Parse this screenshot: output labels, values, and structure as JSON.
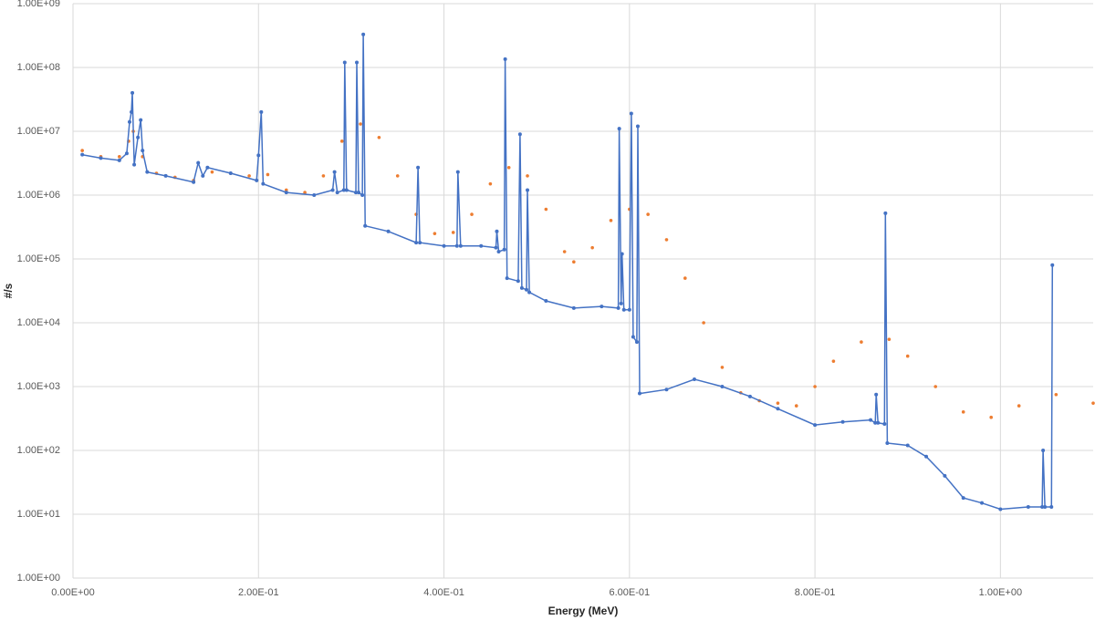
{
  "chart_data": {
    "type": "line",
    "log_y": true,
    "grid": true,
    "x_label": "Energy (MeV)",
    "y_label": "#/s",
    "xlim": [
      0,
      1.1
    ],
    "xticks": [
      {
        "value": 0,
        "label": "0.00E+00"
      },
      {
        "value": 0.2,
        "label": "2.00E-01"
      },
      {
        "value": 0.4,
        "label": "4.00E-01"
      },
      {
        "value": 0.6,
        "label": "6.00E-01"
      },
      {
        "value": 0.8,
        "label": "8.00E-01"
      },
      {
        "value": 1.0,
        "label": "1.00E+00"
      }
    ],
    "ylim": [
      1,
      1000000000
    ],
    "yticks": [
      {
        "value": 1,
        "label": "1.00E+00"
      },
      {
        "value": 10,
        "label": "1.00E+01"
      },
      {
        "value": 100,
        "label": "1.00E+02"
      },
      {
        "value": 1000,
        "label": "1.00E+03"
      },
      {
        "value": 10000,
        "label": "1.00E+04"
      },
      {
        "value": 100000,
        "label": "1.00E+05"
      },
      {
        "value": 1000000,
        "label": "1.00E+06"
      },
      {
        "value": 10000000,
        "label": "1.00E+07"
      },
      {
        "value": 100000000,
        "label": "1.00E+08"
      },
      {
        "value": 1000000000,
        "label": "1.00E+09"
      }
    ],
    "series": [
      {
        "color": "#ed7d31",
        "line": false,
        "x": [
          0.01,
          0.03,
          0.05,
          0.06,
          0.065,
          0.075,
          0.09,
          0.11,
          0.13,
          0.15,
          0.17,
          0.19,
          0.21,
          0.23,
          0.25,
          0.27,
          0.29,
          0.31,
          0.33,
          0.35,
          0.37,
          0.39,
          0.41,
          0.43,
          0.45,
          0.47,
          0.49,
          0.51,
          0.53,
          0.54,
          0.56,
          0.58,
          0.6,
          0.62,
          0.64,
          0.66,
          0.68,
          0.7,
          0.72,
          0.74,
          0.76,
          0.78,
          0.8,
          0.82,
          0.85,
          0.88,
          0.9,
          0.93,
          0.96,
          0.99,
          1.02,
          1.06,
          1.1
        ],
        "values": [
          5000000,
          4000000,
          4000000,
          7000000,
          10000000,
          4000000,
          2200000,
          1900000,
          1700000,
          2300000,
          2200000,
          2000000,
          2100000,
          1200000,
          1100000,
          2000000,
          7000000,
          13000000,
          8000000,
          2000000,
          500000,
          250000,
          260000,
          500000,
          1500000,
          2700000,
          2000000,
          600000,
          130000,
          90000,
          150000,
          400000,
          600000,
          500000,
          200000,
          50000,
          10000,
          2000,
          800,
          600,
          550,
          500,
          1000,
          2500,
          5000,
          5500,
          3000,
          1000,
          400,
          330,
          500,
          750,
          550
        ]
      },
      {
        "color": "#4472c4",
        "line": true,
        "x": [
          0.01,
          0.03,
          0.05,
          0.058,
          0.061,
          0.063,
          0.064,
          0.066,
          0.07,
          0.073,
          0.075,
          0.08,
          0.1,
          0.13,
          0.135,
          0.14,
          0.145,
          0.17,
          0.198,
          0.2,
          0.203,
          0.205,
          0.23,
          0.26,
          0.28,
          0.282,
          0.285,
          0.292,
          0.293,
          0.295,
          0.305,
          0.306,
          0.308,
          0.312,
          0.313,
          0.315,
          0.34,
          0.37,
          0.372,
          0.374,
          0.4,
          0.414,
          0.415,
          0.418,
          0.44,
          0.456,
          0.457,
          0.459,
          0.465,
          0.466,
          0.468,
          0.48,
          0.482,
          0.484,
          0.489,
          0.49,
          0.492,
          0.51,
          0.54,
          0.57,
          0.588,
          0.589,
          0.591,
          0.592,
          0.594,
          0.6,
          0.602,
          0.604,
          0.608,
          0.609,
          0.611,
          0.64,
          0.67,
          0.7,
          0.73,
          0.76,
          0.8,
          0.83,
          0.86,
          0.865,
          0.866,
          0.868,
          0.875,
          0.876,
          0.878,
          0.9,
          0.92,
          0.94,
          0.96,
          0.98,
          1.0,
          1.03,
          1.045,
          1.046,
          1.048,
          1.055,
          1.056
        ],
        "values": [
          4300000,
          3800000,
          3500000,
          4500000,
          14000000,
          20000000,
          40000000,
          3000000,
          8000000,
          15000000,
          5000000,
          2300000,
          2000000,
          1600000,
          3200000,
          2000000,
          2700000,
          2200000,
          1700000,
          4200000,
          20000000,
          1500000,
          1100000,
          1000000,
          1200000,
          2300000,
          1100000,
          1200000,
          120000000,
          1200000,
          1100000,
          120000000,
          1100000,
          1000000,
          330000000,
          330000,
          270000,
          180000,
          2700000,
          180000,
          160000,
          160000,
          2300000,
          160000,
          160000,
          150000,
          270000,
          130000,
          140000,
          135000000,
          50000,
          45000,
          9000000,
          35000,
          33000,
          1200000,
          30000,
          22000,
          17000,
          18000,
          17000,
          11000000,
          20000,
          120000,
          16000,
          16000,
          19000000,
          6000,
          5000,
          12000000,
          780,
          900,
          1300,
          1000,
          700,
          450,
          250,
          280,
          300,
          270,
          750,
          270,
          260,
          520000,
          130,
          120,
          80,
          40,
          18,
          15,
          12,
          13,
          13,
          100,
          13,
          13,
          80000
        ]
      }
    ]
  }
}
